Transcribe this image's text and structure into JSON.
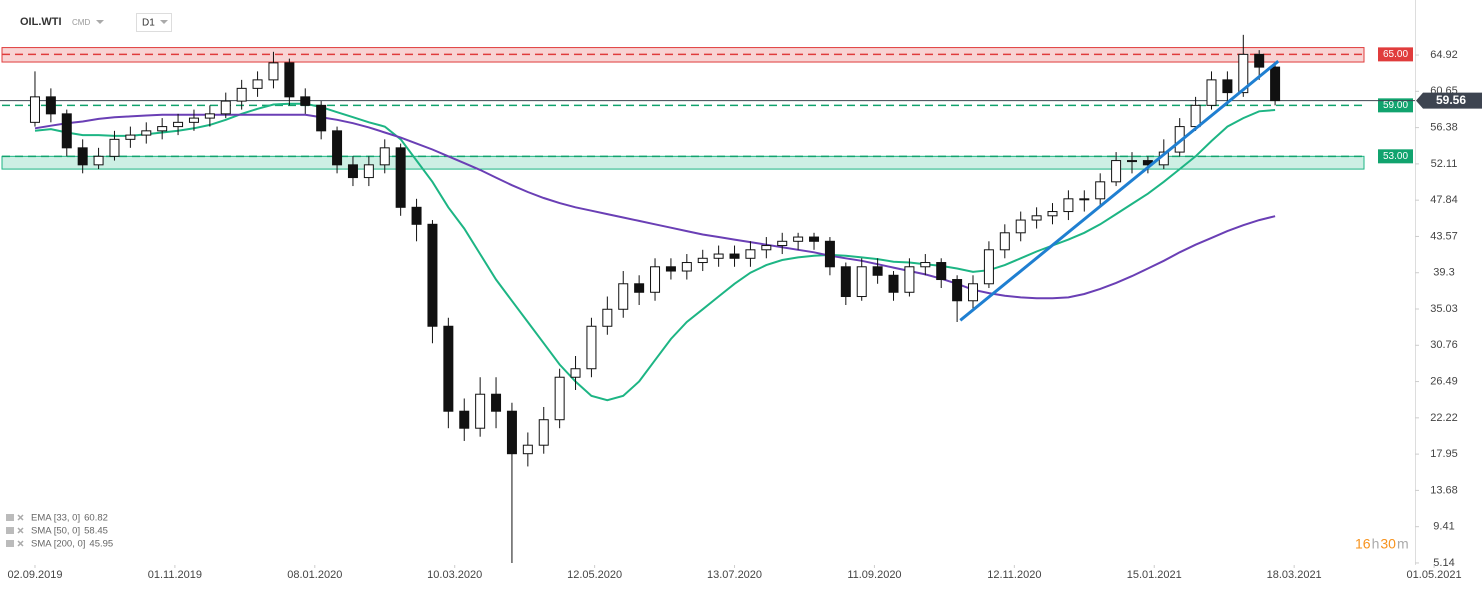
{
  "header": {
    "symbol": "OIL.WTI",
    "market": "CMD",
    "interval": "D1"
  },
  "chart_data": {
    "type": "candlestick",
    "xlim": [
      -2.2,
      86.8
    ],
    "ylim": [
      4.9,
      71.4
    ],
    "xticks": [
      {
        "value": 0,
        "label": "02.09.2019"
      },
      {
        "value": 8.8,
        "label": "01.11.2019"
      },
      {
        "value": 17.6,
        "label": "08.01.2020"
      },
      {
        "value": 26.4,
        "label": "10.03.2020"
      },
      {
        "value": 35.2,
        "label": "12.05.2020"
      },
      {
        "value": 44,
        "label": "13.07.2020"
      },
      {
        "value": 52.8,
        "label": "11.09.2020"
      },
      {
        "value": 61.6,
        "label": "12.11.2020"
      },
      {
        "value": 70.4,
        "label": "15.01.2021"
      },
      {
        "value": 79.2,
        "label": "18.03.2021"
      },
      {
        "value": 88,
        "label": "01.05.2021"
      }
    ],
    "yticks": [
      64.92,
      60.65,
      56.38,
      52.11,
      47.84,
      43.57,
      39.3,
      35.03,
      30.76,
      26.49,
      22.22,
      17.95,
      13.68,
      9.41,
      5.14
    ],
    "up_color": "#ffffff",
    "down_color": "#111111",
    "open": [
      57,
      60,
      58,
      54,
      52,
      53,
      55,
      55.5,
      56,
      56.5,
      57,
      57.5,
      58,
      59.5,
      61,
      62,
      64,
      60,
      59,
      56,
      52,
      50.5,
      52,
      54,
      47,
      45,
      33,
      23,
      21,
      25,
      23,
      18,
      19,
      22,
      27,
      28,
      33,
      35,
      38,
      37,
      40,
      39.5,
      40.5,
      41,
      41.5,
      41,
      42,
      42.5,
      43,
      43.5,
      43,
      40,
      36.5,
      40,
      39,
      37,
      40,
      40.5,
      38.5,
      36,
      38,
      42,
      44,
      45.5,
      46,
      46.5,
      48,
      48,
      50,
      52.5,
      52.5,
      52,
      53.5,
      56.5,
      59,
      62,
      60.5,
      65,
      63.5
    ],
    "high": [
      63,
      61,
      58.5,
      55,
      54,
      56,
      56.5,
      57,
      57.5,
      58,
      58.5,
      59,
      60.5,
      62,
      63,
      65.3,
      64.5,
      61,
      59.5,
      56.5,
      53,
      53,
      55,
      54.5,
      48,
      45.5,
      34,
      24.5,
      27,
      27,
      24,
      20.5,
      23.5,
      28,
      29.5,
      34,
      36.5,
      39.5,
      39,
      41,
      41,
      41.5,
      42,
      42.5,
      42.5,
      43,
      43.5,
      44,
      44,
      44,
      43.5,
      40.5,
      41,
      41,
      39.5,
      41,
      41.5,
      41,
      39,
      39,
      43,
      45,
      46.5,
      47,
      47.5,
      49,
      49,
      51,
      53.5,
      53.5,
      53,
      55,
      57.5,
      60,
      63,
      63,
      67.3,
      65.5,
      64
    ],
    "low": [
      56.5,
      57,
      53,
      51,
      51.5,
      52.5,
      54,
      54.5,
      55,
      55.5,
      56,
      56.5,
      57.5,
      58.5,
      60,
      61,
      59,
      58,
      55,
      51,
      49.5,
      49.5,
      51,
      46,
      43,
      31,
      21,
      19.5,
      20,
      21,
      5.14,
      16.5,
      18,
      21,
      25.5,
      27,
      32,
      34,
      35.5,
      36,
      38.5,
      38.5,
      39.5,
      40,
      40,
      40,
      41,
      41.5,
      42,
      42,
      39,
      35.5,
      36,
      38,
      36,
      36.5,
      39,
      37.5,
      33.5,
      35,
      37.5,
      41,
      43,
      44.5,
      45,
      45.5,
      46.5,
      47,
      49.5,
      51,
      51,
      51.5,
      53,
      56,
      58.5,
      59,
      60,
      62,
      59
    ],
    "close": [
      60,
      58,
      54,
      52,
      53,
      55,
      55.5,
      56,
      56.5,
      57,
      57.5,
      58,
      59.5,
      61,
      62,
      64,
      60,
      59,
      56,
      52,
      50.5,
      52,
      54,
      47,
      45,
      33,
      23,
      21,
      25,
      23,
      18,
      19,
      22,
      27,
      28,
      33,
      35,
      38,
      37,
      40,
      39.5,
      40.5,
      41,
      41.5,
      41,
      42,
      42.5,
      43,
      43.5,
      43,
      40,
      36.5,
      40,
      39,
      37,
      40,
      40.5,
      38.5,
      36,
      38,
      42,
      44,
      45.5,
      46,
      46.5,
      48,
      48,
      50,
      52.5,
      52.5,
      52,
      53.5,
      56.5,
      59,
      62,
      60.5,
      65,
      63.5,
      59.56
    ],
    "indicators": [
      {
        "color": "#1db584",
        "values": [
          56,
          56.2,
          55.8,
          55.5,
          55.5,
          55.4,
          55.4,
          55.6,
          55.8,
          56,
          56.3,
          56.7,
          57.3,
          58,
          58.6,
          59.1,
          59.2,
          59.2,
          58.8,
          58.2,
          57.6,
          57,
          56.5,
          55,
          52.5,
          50,
          47,
          44.5,
          41.5,
          38.5,
          36,
          33.5,
          31,
          28.5,
          26.5,
          24.8,
          24.3,
          24.8,
          26.5,
          29,
          31.5,
          33.5,
          35,
          36.5,
          38,
          39.3,
          40.2,
          40.8,
          41.1,
          41.3,
          41.4,
          41.3,
          41.1,
          40.9,
          40.6,
          40.5,
          40.3,
          40.1,
          39.8,
          39.4,
          39.6,
          40.2,
          41,
          41.8,
          42.5,
          43.2,
          44,
          45,
          46.2,
          47.4,
          48.6,
          50,
          51.5,
          53,
          54.8,
          56.5,
          57.5,
          58.3,
          58.45
        ]
      },
      {
        "color": "#6a3fb5",
        "values": [
          56.3,
          56.6,
          56.9,
          57.1,
          57.4,
          57.6,
          57.7,
          57.8,
          57.9,
          57.9,
          57.9,
          57.9,
          57.9,
          57.9,
          57.9,
          57.9,
          57.9,
          57.9,
          57.6,
          57.3,
          56.9,
          56.4,
          55.8,
          55.2,
          54.5,
          53.8,
          53,
          52.2,
          51.4,
          50.5,
          49.6,
          48.8,
          48.1,
          47.5,
          47,
          46.6,
          46.2,
          45.8,
          45.4,
          45,
          44.6,
          44.2,
          43.8,
          43.5,
          43.2,
          42.9,
          42.6,
          42.3,
          42,
          41.7,
          41.3,
          41,
          40.7,
          40.3,
          39.9,
          39.5,
          39.1,
          38.6,
          38,
          37.3,
          36.9,
          36.6,
          36.4,
          36.3,
          36.3,
          36.4,
          36.8,
          37.4,
          38.1,
          38.9,
          39.8,
          40.7,
          41.7,
          42.6,
          43.4,
          44.2,
          44.9,
          45.5,
          45.95
        ]
      }
    ],
    "zones": [
      {
        "from": 64.1,
        "to": 65.8,
        "color": "#e03c3c"
      },
      {
        "from": 51.5,
        "to": 53,
        "color": "#1db584"
      }
    ],
    "levels": [
      {
        "value": 65,
        "label": "65.00",
        "color": "#e03c3c"
      },
      {
        "value": 59,
        "label": "59.00",
        "color": "#11a36e"
      },
      {
        "value": 53,
        "label": "53.00",
        "color": "#11a36e"
      }
    ],
    "last_price": {
      "value": 59.56,
      "label": "59.56",
      "color": "#3d4450"
    },
    "trendline": {
      "color": "#1f7fd1",
      "x": [
        58.2,
        78.2
      ],
      "y": [
        33.7,
        64.2
      ]
    },
    "legend": [
      {
        "name": "EMA [33, 0]",
        "value": 60.82
      },
      {
        "name": "SMA [50, 0]",
        "value": 58.45
      },
      {
        "name": "SMA [200, 0]",
        "value": 45.95
      }
    ],
    "countdown": {
      "hours": "16",
      "hours_unit": "h",
      "minutes": "30",
      "minutes_unit": "m"
    }
  }
}
